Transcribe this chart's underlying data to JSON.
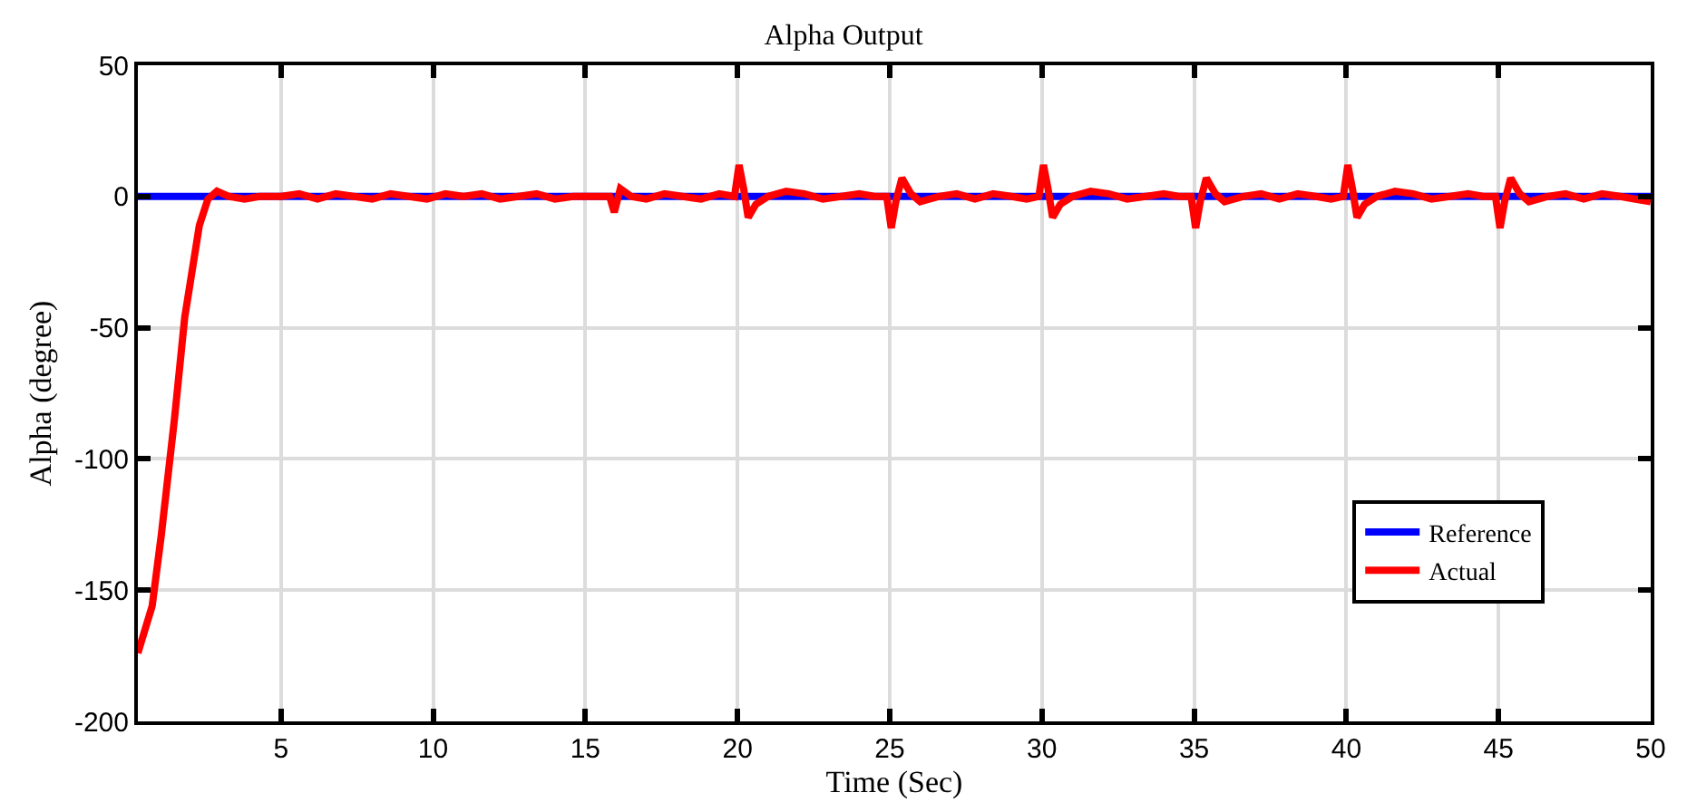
{
  "chart_data": {
    "type": "line",
    "title": "Alpha Output",
    "xlabel": "Time (Sec)",
    "ylabel": "Alpha (degree)",
    "xlim": [
      0.3,
      50
    ],
    "xticks": [
      5,
      10,
      15,
      20,
      25,
      30,
      35,
      40,
      45,
      50
    ],
    "ylim": [
      -200,
      50
    ],
    "yticks": [
      -200,
      -150,
      -100,
      -50,
      0,
      50
    ],
    "grid": true,
    "legend": "bottom right",
    "marker": "none",
    "line_style": "solid",
    "series": [
      {
        "name": "Reference",
        "color": "#0000ff",
        "x": [
          0.3,
          50
        ],
        "values": [
          0,
          0
        ]
      },
      {
        "name": "Actual",
        "color": "#ff0000",
        "x": [
          0.3,
          0.77,
          1.07,
          1.5,
          1.84,
          2.32,
          2.6,
          2.9,
          3.3,
          3.8,
          4.3,
          5,
          5.6,
          6.2,
          6.8,
          7.4,
          8,
          8.6,
          9.2,
          9.8,
          10.4,
          11,
          11.6,
          12.2,
          12.8,
          13.4,
          14,
          14.6,
          15.2,
          15.8,
          15.95,
          16.15,
          16.5,
          17,
          17.6,
          18.2,
          18.8,
          19.4,
          19.9,
          20.05,
          20.2,
          20.35,
          20.6,
          21,
          21.6,
          22.2,
          22.8,
          23.4,
          24,
          24.5,
          24.9,
          25.05,
          25.2,
          25.4,
          25.7,
          26,
          26.6,
          27.2,
          27.8,
          28.4,
          29,
          29.5,
          29.9,
          30.05,
          30.2,
          30.35,
          30.6,
          31,
          31.6,
          32.2,
          32.8,
          33.4,
          34,
          34.5,
          34.9,
          35.05,
          35.2,
          35.4,
          35.7,
          36,
          36.6,
          37.2,
          37.8,
          38.4,
          39,
          39.5,
          39.9,
          40.05,
          40.2,
          40.35,
          40.6,
          41,
          41.6,
          42.2,
          42.8,
          43.4,
          44,
          44.5,
          44.9,
          45.05,
          45.2,
          45.4,
          45.7,
          46,
          46.6,
          47.2,
          47.8,
          48.4,
          49,
          49.5,
          50
        ],
        "values": [
          -174,
          -156,
          -129,
          -85,
          -46,
          -11,
          -1,
          2,
          0,
          -1,
          0,
          0,
          1,
          -1,
          1,
          0,
          -1,
          1,
          0,
          -1,
          1,
          0,
          1,
          -1,
          0,
          1,
          -1,
          0,
          0,
          0,
          -6,
          3,
          0,
          -1,
          1,
          0,
          -1,
          1,
          0,
          12,
          3,
          -8,
          -3,
          0,
          2,
          1,
          -1,
          0,
          1,
          0,
          0,
          -12,
          -2,
          7,
          1,
          -2,
          0,
          1,
          -1,
          1,
          0,
          -1,
          0,
          12,
          3,
          -8,
          -3,
          0,
          2,
          1,
          -1,
          0,
          1,
          0,
          0,
          -12,
          -2,
          7,
          1,
          -2,
          0,
          1,
          -1,
          1,
          0,
          -1,
          0,
          12,
          3,
          -8,
          -3,
          0,
          2,
          1,
          -1,
          0,
          1,
          0,
          0,
          -12,
          -2,
          7,
          1,
          -2,
          0,
          1,
          -1,
          1,
          0,
          -1,
          -2
        ]
      }
    ]
  }
}
